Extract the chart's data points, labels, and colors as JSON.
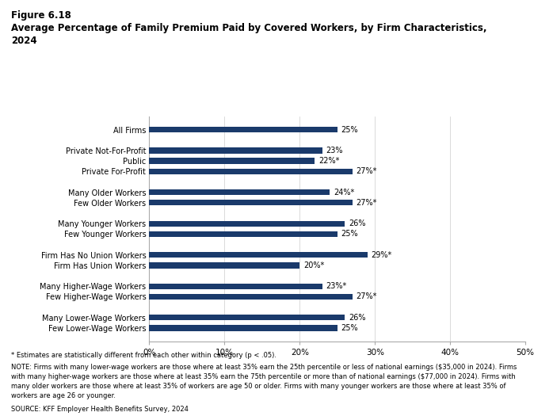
{
  "title_line1": "Figure 6.18",
  "title_line2": "Average Percentage of Family Premium Paid by Covered Workers, by Firm Characteristics,\n2024",
  "categories": [
    "Few Lower-Wage Workers",
    "Many Lower-Wage Workers",
    "",
    "Few Higher-Wage Workers",
    "Many Higher-Wage Workers",
    "",
    "Firm Has Union Workers",
    "Firm Has No Union Workers",
    "",
    "Few Younger Workers",
    "Many Younger Workers",
    "",
    "Few Older Workers",
    "Many Older Workers",
    "",
    "Private For-Profit",
    "Public",
    "Private Not-For-Profit",
    "",
    "All Firms"
  ],
  "values": [
    25,
    26,
    0,
    27,
    23,
    0,
    20,
    29,
    0,
    25,
    26,
    0,
    27,
    24,
    0,
    27,
    22,
    23,
    0,
    25
  ],
  "labels": [
    "25%",
    "26%",
    "",
    "27%*",
    "23%*",
    "",
    "20%*",
    "29%*",
    "",
    "25%",
    "26%",
    "",
    "27%*",
    "24%*",
    "",
    "27%*",
    "22%*",
    "23%",
    "",
    "25%"
  ],
  "bar_color": "#1a3a6b",
  "bar_height": 0.55,
  "xlim": [
    0,
    50
  ],
  "xticks": [
    0,
    10,
    20,
    30,
    40,
    50
  ],
  "xticklabels": [
    "0%",
    "10%",
    "20%",
    "30%",
    "40%",
    "50%"
  ],
  "footnote1": "* Estimates are statistically different from each other within category (p < .05).",
  "footnote2": "NOTE: Firms with many lower-wage workers are those where at least 35% earn the 25th percentile or less of national earnings ($35,000 in 2024). Firms\nwith many higher-wage workers are those where at least 35% earn the 75th percentile or more than of national earnings ($77,000 in 2024). Firms with\nmany older workers are those where at least 35% of workers are age 50 or older. Firms with many younger workers are those where at least 35% of\nworkers are age 26 or younger.",
  "footnote3": "SOURCE: KFF Employer Health Benefits Survey, 2024"
}
